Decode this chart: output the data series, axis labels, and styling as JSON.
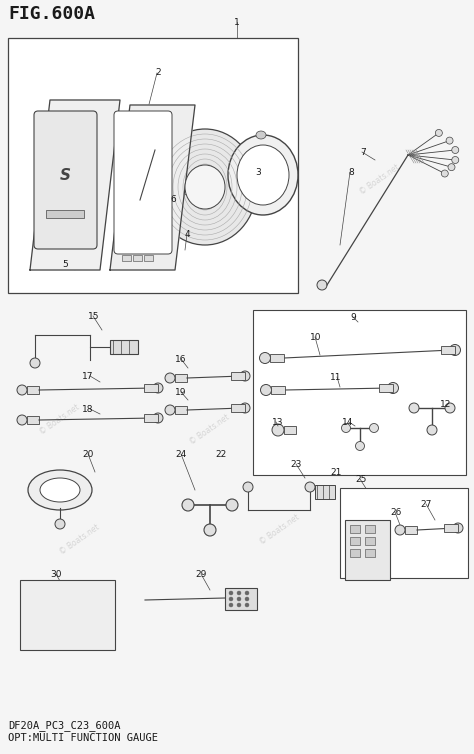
{
  "title": "FIG.600A",
  "footer_line1": "DF20A_PC3_C23_600A",
  "footer_line2": "OPT:MULTI FUNCTION GAUGE",
  "bg_color": "#f5f5f5",
  "fig_width": 4.74,
  "fig_height": 7.54
}
